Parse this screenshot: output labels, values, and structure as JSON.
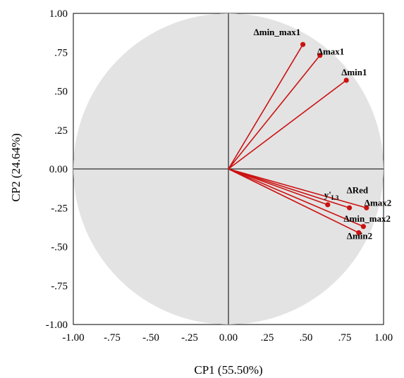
{
  "chart_data": {
    "type": "scatter",
    "xlabel": "CP1 (55.50%)",
    "ylabel": "CP2 (24.64%)",
    "xlim": [
      -1.0,
      1.0
    ],
    "ylim": [
      -1.0,
      1.0
    ],
    "x_ticks": [
      "-1.00",
      "-.75",
      "-.50",
      "-.25",
      "0.00",
      ".25",
      ".50",
      ".75",
      "1.00"
    ],
    "y_ticks": [
      "1.00",
      ".75",
      ".50",
      ".25",
      "0.00",
      "-.25",
      "-.50",
      "-.75",
      "-1.00"
    ],
    "grid": false,
    "unit_circle_fill": "#e3e3e3",
    "vector_color": "#cc1111",
    "vectors": [
      {
        "label": "Δmin_max1",
        "x": 0.48,
        "y": 0.8
      },
      {
        "label": "Δmax1",
        "x": 0.59,
        "y": 0.73
      },
      {
        "label": "Δmin1",
        "x": 0.76,
        "y": 0.57
      },
      {
        "label": "y'",
        "label_sub": "L3",
        "x": 0.64,
        "y": -0.23
      },
      {
        "label": "ΔRed",
        "x": 0.78,
        "y": -0.25
      },
      {
        "label": "Δmax2",
        "x": 0.89,
        "y": -0.25
      },
      {
        "label": "Δmin_max2",
        "x": 0.87,
        "y": -0.37
      },
      {
        "label": "Δmin2",
        "x": 0.84,
        "y": -0.41
      }
    ]
  }
}
